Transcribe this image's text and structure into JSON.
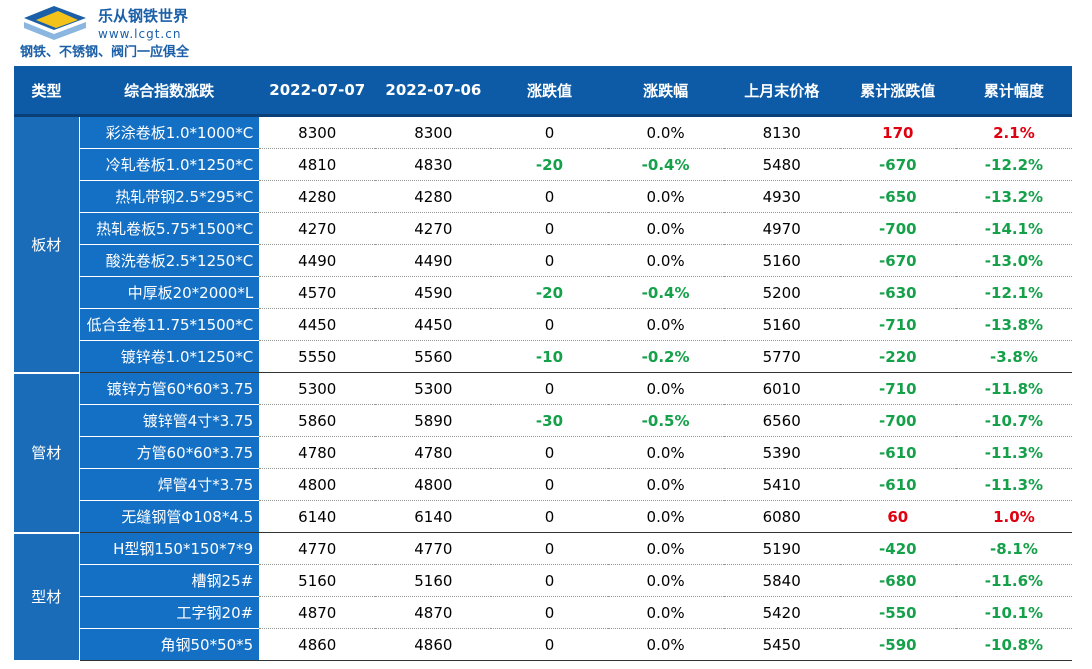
{
  "header": {
    "brand": "乐从钢铁世界",
    "url": "www.lcgt.cn",
    "slogan": "钢铁、不锈钢、阀门一应俱全"
  },
  "table": {
    "headers": [
      "类型",
      "综合指数涨跌",
      "2022-07-07",
      "2022-07-06",
      "涨跌值",
      "涨跌幅",
      "上月末价格",
      "累计涨跌值",
      "累计幅度"
    ],
    "groups": [
      {
        "name": "板材",
        "rows": [
          [
            "彩涂卷板1.0*1000*C",
            "8300",
            "8300",
            "0",
            "0.0%",
            "8130",
            "170",
            "2.1%"
          ],
          [
            "冷轧卷板1.0*1250*C",
            "4810",
            "4830",
            "-20",
            "-0.4%",
            "5480",
            "-670",
            "-12.2%"
          ],
          [
            "热轧带钢2.5*295*C",
            "4280",
            "4280",
            "0",
            "0.0%",
            "4930",
            "-650",
            "-13.2%"
          ],
          [
            "热轧卷板5.75*1500*C",
            "4270",
            "4270",
            "0",
            "0.0%",
            "4970",
            "-700",
            "-14.1%"
          ],
          [
            "酸洗卷板2.5*1250*C",
            "4490",
            "4490",
            "0",
            "0.0%",
            "5160",
            "-670",
            "-13.0%"
          ],
          [
            "中厚板20*2000*L",
            "4570",
            "4590",
            "-20",
            "-0.4%",
            "5200",
            "-630",
            "-12.1%"
          ],
          [
            "低合金卷11.75*1500*C",
            "4450",
            "4450",
            "0",
            "0.0%",
            "5160",
            "-710",
            "-13.8%"
          ],
          [
            "镀锌卷1.0*1250*C",
            "5550",
            "5560",
            "-10",
            "-0.2%",
            "5770",
            "-220",
            "-3.8%"
          ]
        ]
      },
      {
        "name": "管材",
        "rows": [
          [
            "镀锌方管60*60*3.75",
            "5300",
            "5300",
            "0",
            "0.0%",
            "6010",
            "-710",
            "-11.8%"
          ],
          [
            "镀锌管4寸*3.75",
            "5860",
            "5890",
            "-30",
            "-0.5%",
            "6560",
            "-700",
            "-10.7%"
          ],
          [
            "方管60*60*3.75",
            "4780",
            "4780",
            "0",
            "0.0%",
            "5390",
            "-610",
            "-11.3%"
          ],
          [
            "焊管4寸*3.75",
            "4800",
            "4800",
            "0",
            "0.0%",
            "5410",
            "-610",
            "-11.3%"
          ],
          [
            "无缝钢管Φ108*4.5",
            "6140",
            "6140",
            "0",
            "0.0%",
            "6080",
            "60",
            "1.0%"
          ]
        ]
      },
      {
        "name": "型材",
        "rows": [
          [
            "H型钢150*150*7*9",
            "4770",
            "4770",
            "0",
            "0.0%",
            "5190",
            "-420",
            "-8.1%"
          ],
          [
            "槽钢25#",
            "5160",
            "5160",
            "0",
            "0.0%",
            "5840",
            "-680",
            "-11.6%"
          ],
          [
            "工字钢20#",
            "4870",
            "4870",
            "0",
            "0.0%",
            "5420",
            "-550",
            "-10.1%"
          ],
          [
            "角钢50*50*5",
            "4860",
            "4860",
            "0",
            "0.0%",
            "5450",
            "-590",
            "-10.8%"
          ]
        ]
      }
    ]
  }
}
